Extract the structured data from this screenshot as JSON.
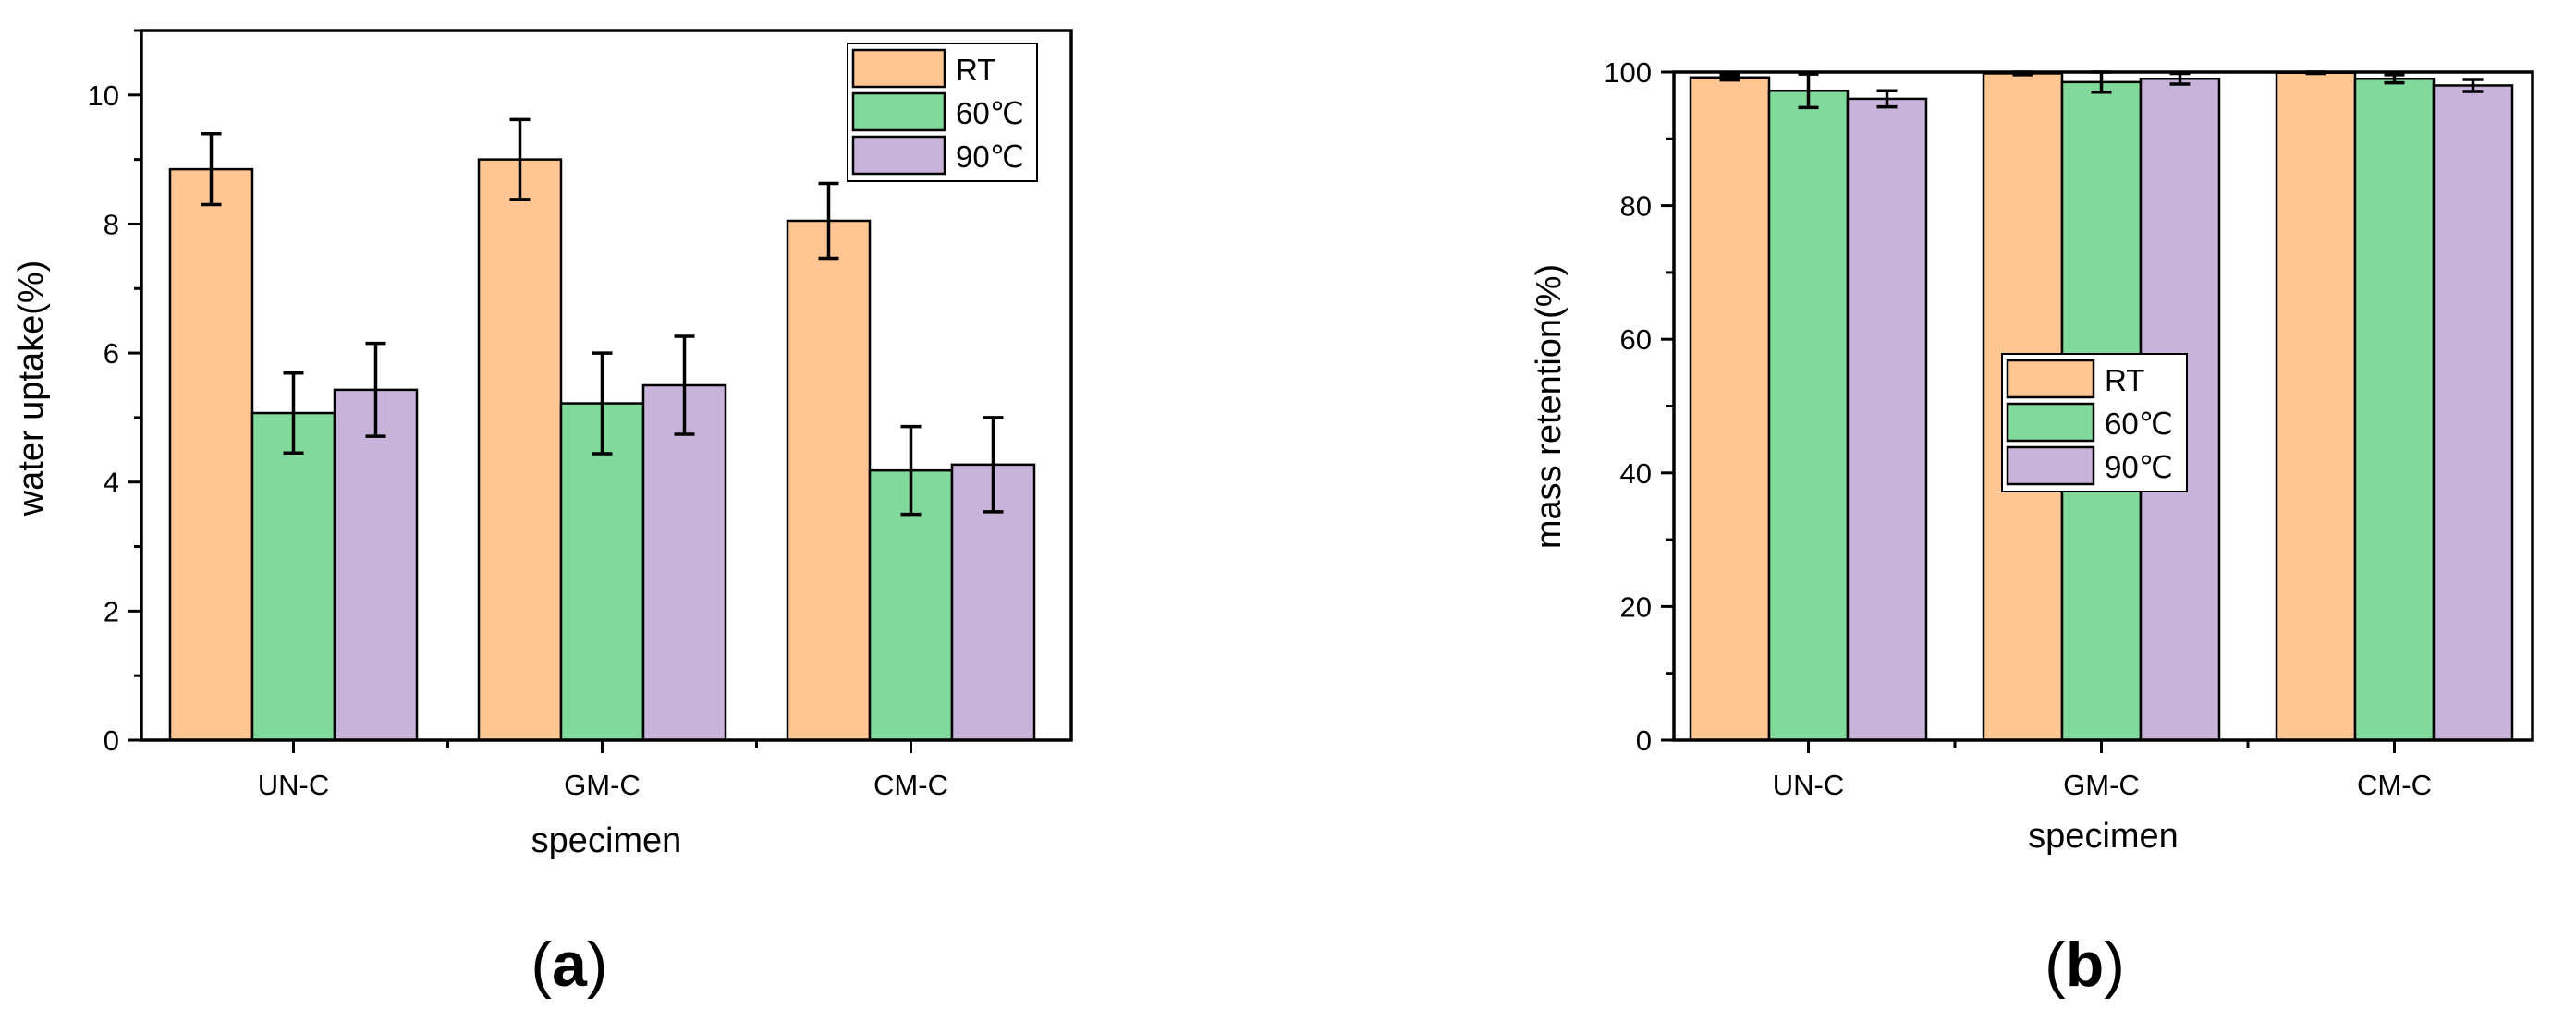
{
  "colors": {
    "rt": "#FFC593",
    "c60": "#81D99B",
    "c90": "#C8B4DA",
    "axis": "#000000"
  },
  "chart_data": [
    {
      "id": "a",
      "type": "bar",
      "panel_label": "(a)",
      "panel_letter": "a",
      "xlabel": "specimen",
      "ylabel": "water uptake(%)",
      "categories": [
        "UN-C",
        "GM-C",
        "CM-C"
      ],
      "ylim": [
        0,
        11
      ],
      "yticks": [
        0,
        2,
        4,
        6,
        8,
        10
      ],
      "grid": false,
      "legend_position": "top-right",
      "series": [
        {
          "name": "RT",
          "color_key": "rt",
          "values": [
            8.85,
            9.0,
            8.05
          ],
          "errors": [
            0.55,
            0.62,
            0.58
          ]
        },
        {
          "name": "60℃",
          "color_key": "c60",
          "values": [
            5.07,
            5.22,
            4.18
          ],
          "errors": [
            0.62,
            0.78,
            0.68
          ]
        },
        {
          "name": "90℃",
          "color_key": "c90",
          "values": [
            5.43,
            5.5,
            4.27
          ],
          "errors": [
            0.72,
            0.76,
            0.73
          ]
        }
      ]
    },
    {
      "id": "b",
      "type": "bar",
      "panel_label": "(b)",
      "panel_letter": "b",
      "xlabel": "specimen",
      "ylabel": "mass retention(%)",
      "categories": [
        "UN-C",
        "GM-C",
        "CM-C"
      ],
      "ylim": [
        0,
        100
      ],
      "yticks": [
        0,
        20,
        40,
        60,
        80,
        100
      ],
      "grid": false,
      "legend_position": "center",
      "series": [
        {
          "name": "RT",
          "color_key": "rt",
          "values": [
            99.2,
            99.8,
            99.9
          ],
          "errors": [
            0.4,
            0.2,
            0.1
          ]
        },
        {
          "name": "60℃",
          "color_key": "c60",
          "values": [
            97.2,
            98.5,
            99.0
          ],
          "errors": [
            2.5,
            1.5,
            0.6
          ]
        },
        {
          "name": "90℃",
          "color_key": "c90",
          "values": [
            96.0,
            99.0,
            98.0
          ],
          "errors": [
            1.2,
            0.8,
            0.9
          ]
        }
      ]
    }
  ]
}
